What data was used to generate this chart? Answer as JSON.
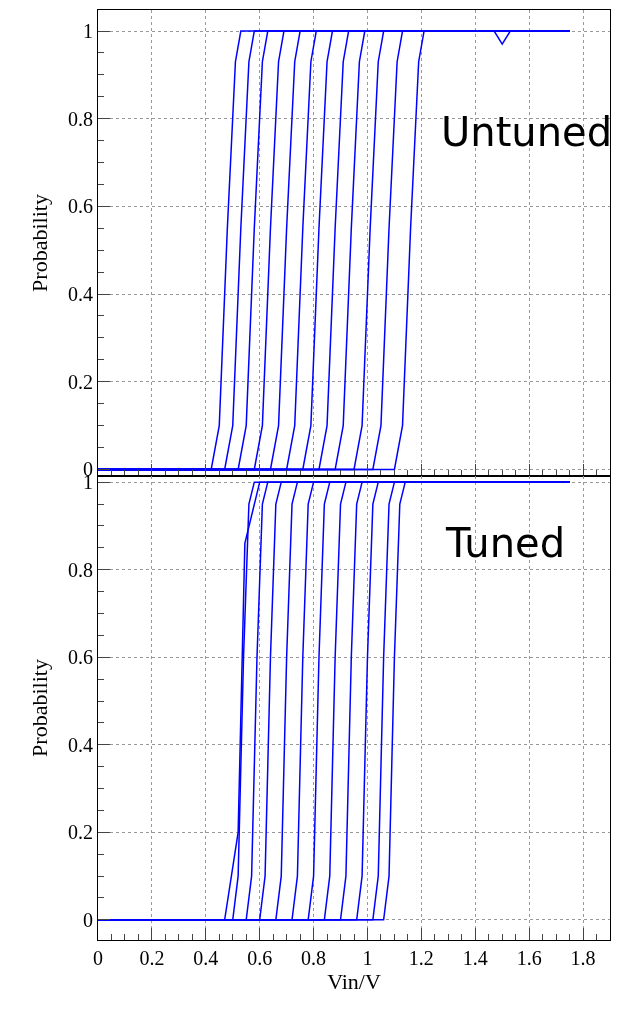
{
  "chart_data": [
    {
      "type": "line",
      "ylabel": "Probability",
      "annotations": [
        "Untuned"
      ],
      "xlim": [
        0,
        1.9
      ],
      "xticks": [
        0,
        0.2,
        0.4,
        0.6,
        0.8,
        1,
        1.2,
        1.4,
        1.6,
        1.8
      ],
      "ylim": [
        -0.015,
        1.048
      ],
      "yticks": [
        0,
        0.2,
        0.4,
        0.6,
        0.8,
        1
      ],
      "grid": true,
      "tick_labels": "y",
      "series": [
        {
          "color": "#0000ff",
          "x": [
            0,
            0.42,
            0.45,
            0.48,
            0.51,
            0.53,
            1.75
          ],
          "values": [
            0,
            0,
            0.1,
            0.55,
            0.93,
            1,
            1
          ]
        },
        {
          "color": "#0000ff",
          "x": [
            0,
            0.47,
            0.5,
            0.53,
            0.56,
            0.58,
            1.75
          ],
          "values": [
            0,
            0,
            0.1,
            0.55,
            0.93,
            1,
            1
          ]
        },
        {
          "color": "#0000ff",
          "x": [
            0,
            0.52,
            0.55,
            0.58,
            0.61,
            0.63,
            1.75
          ],
          "values": [
            0,
            0,
            0.1,
            0.55,
            0.93,
            1,
            1
          ]
        },
        {
          "color": "#0000ff",
          "x": [
            0,
            0.58,
            0.61,
            0.64,
            0.67,
            0.69,
            1.75
          ],
          "values": [
            0,
            0,
            0.1,
            0.55,
            0.93,
            1,
            1
          ]
        },
        {
          "color": "#0000ff",
          "x": [
            0,
            0.64,
            0.67,
            0.7,
            0.73,
            0.75,
            1.75
          ],
          "values": [
            0,
            0,
            0.1,
            0.55,
            0.93,
            1,
            1
          ]
        },
        {
          "color": "#0000ff",
          "x": [
            0,
            0.7,
            0.73,
            0.76,
            0.79,
            0.81,
            1.47,
            1.5,
            1.53,
            1.75
          ],
          "values": [
            0,
            0,
            0.1,
            0.55,
            0.93,
            1,
            1,
            0.97,
            1,
            1
          ]
        },
        {
          "color": "#0000ff",
          "x": [
            0,
            0.76,
            0.79,
            0.82,
            0.85,
            0.87,
            1.75
          ],
          "values": [
            0,
            0,
            0.1,
            0.55,
            0.93,
            1,
            1
          ]
        },
        {
          "color": "#0000ff",
          "x": [
            0,
            0.82,
            0.85,
            0.88,
            0.91,
            0.93,
            1.75
          ],
          "values": [
            0,
            0,
            0.1,
            0.55,
            0.93,
            1,
            1
          ]
        },
        {
          "color": "#0000ff",
          "x": [
            0,
            0.88,
            0.91,
            0.94,
            0.97,
            0.99,
            1.75
          ],
          "values": [
            0,
            0,
            0.1,
            0.55,
            0.93,
            1,
            1
          ]
        },
        {
          "color": "#0000ff",
          "x": [
            0,
            0.95,
            0.98,
            1.01,
            1.04,
            1.06,
            1.75
          ],
          "values": [
            0,
            0,
            0.1,
            0.55,
            0.93,
            1,
            1
          ]
        },
        {
          "color": "#0000ff",
          "x": [
            0,
            1.02,
            1.05,
            1.08,
            1.11,
            1.13,
            1.75
          ],
          "values": [
            0,
            0,
            0.1,
            0.55,
            0.93,
            1,
            1
          ]
        },
        {
          "color": "#0000ff",
          "x": [
            0,
            1.1,
            1.13,
            1.16,
            1.19,
            1.21,
            1.75
          ],
          "values": [
            0,
            0,
            0.1,
            0.55,
            0.93,
            1,
            1
          ]
        }
      ]
    },
    {
      "type": "line",
      "xlabel": "Vin/V",
      "ylabel": "Probability",
      "annotations": [
        "Tuned"
      ],
      "xlim": [
        0,
        1.9
      ],
      "xticks": [
        0,
        0.2,
        0.4,
        0.6,
        0.8,
        1,
        1.2,
        1.4,
        1.6,
        1.8
      ],
      "ylim": [
        -0.046,
        1.014
      ],
      "yticks": [
        0,
        0.2,
        0.4,
        0.6,
        0.8,
        1
      ],
      "grid": true,
      "series": [
        {
          "color": "#0000ff",
          "x": [
            0,
            0.47,
            0.52,
            0.545,
            0.6,
            1.75
          ],
          "values": [
            0,
            0,
            0.2,
            0.86,
            1,
            1
          ]
        },
        {
          "color": "#0000ff",
          "x": [
            0,
            0.5,
            0.52,
            0.54,
            0.56,
            0.58,
            1.75
          ],
          "values": [
            0,
            0,
            0.1,
            0.6,
            0.95,
            1,
            1
          ]
        },
        {
          "color": "#0000ff",
          "x": [
            0,
            0.55,
            0.57,
            0.59,
            0.61,
            0.63,
            1.75
          ],
          "values": [
            0,
            0,
            0.1,
            0.6,
            0.95,
            1,
            1
          ]
        },
        {
          "color": "#0000ff",
          "x": [
            0,
            0.6,
            0.62,
            0.64,
            0.66,
            0.68,
            1.75
          ],
          "values": [
            0,
            0,
            0.1,
            0.6,
            0.95,
            1,
            1
          ]
        },
        {
          "color": "#0000ff",
          "x": [
            0,
            0.66,
            0.68,
            0.7,
            0.72,
            0.74,
            1.75
          ],
          "values": [
            0,
            0,
            0.1,
            0.6,
            0.95,
            1,
            1
          ]
        },
        {
          "color": "#0000ff",
          "x": [
            0,
            0.72,
            0.74,
            0.76,
            0.78,
            0.8,
            1.75
          ],
          "values": [
            0,
            0,
            0.1,
            0.6,
            0.95,
            1,
            1
          ]
        },
        {
          "color": "#0000ff",
          "x": [
            0,
            0.78,
            0.8,
            0.82,
            0.84,
            0.86,
            1.75
          ],
          "values": [
            0,
            0,
            0.1,
            0.6,
            0.95,
            1,
            1
          ]
        },
        {
          "color": "#0000ff",
          "x": [
            0,
            0.84,
            0.86,
            0.88,
            0.9,
            0.92,
            1.75
          ],
          "values": [
            0,
            0,
            0.1,
            0.6,
            0.95,
            1,
            1
          ]
        },
        {
          "color": "#0000ff",
          "x": [
            0,
            0.9,
            0.92,
            0.94,
            0.96,
            0.98,
            1.75
          ],
          "values": [
            0,
            0,
            0.1,
            0.6,
            0.95,
            1,
            1
          ]
        },
        {
          "color": "#0000ff",
          "x": [
            0,
            0.96,
            0.98,
            1,
            1.02,
            1.04,
            1.75
          ],
          "values": [
            0,
            0,
            0.1,
            0.6,
            0.95,
            1,
            1
          ]
        },
        {
          "color": "#0000ff",
          "x": [
            0,
            1.02,
            1.04,
            1.06,
            1.08,
            1.1,
            1.75
          ],
          "values": [
            0,
            0,
            0.1,
            0.6,
            0.95,
            1,
            1
          ]
        },
        {
          "color": "#0000ff",
          "x": [
            0,
            1.06,
            1.08,
            1.1,
            1.12,
            1.14,
            1.75
          ],
          "values": [
            0,
            0,
            0.1,
            0.6,
            0.95,
            1,
            1
          ]
        }
      ]
    }
  ]
}
